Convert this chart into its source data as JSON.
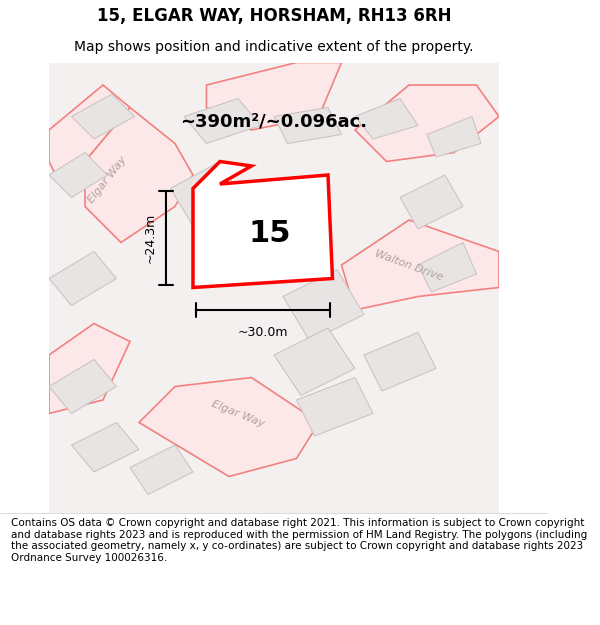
{
  "title": "15, ELGAR WAY, HORSHAM, RH13 6RH",
  "subtitle": "Map shows position and indicative extent of the property.",
  "footer": "Contains OS data © Crown copyright and database right 2021. This information is subject to Crown copyright and database rights 2023 and is reproduced with the permission of HM Land Registry. The polygons (including the associated geometry, namely x, y co-ordinates) are subject to Crown copyright and database rights 2023 Ordnance Survey 100026316.",
  "area_label": "~390m²/~0.096ac.",
  "plot_number": "15",
  "dim_width": "~30.0m",
  "dim_height": "~24.3m",
  "bg_color": "#f5f0f0",
  "map_bg": "#f5f0f0",
  "road_color": "#f28080",
  "road_fill": "#fce8e8",
  "building_fill": "#e8e4e4",
  "building_edge": "#c8c0c0",
  "plot_fill": "#ffffff",
  "plot_edge": "#ff0000",
  "annotation_color": "#000000",
  "street_label_color": "#b0a0a0",
  "title_fontsize": 12,
  "subtitle_fontsize": 10,
  "footer_fontsize": 7.5
}
